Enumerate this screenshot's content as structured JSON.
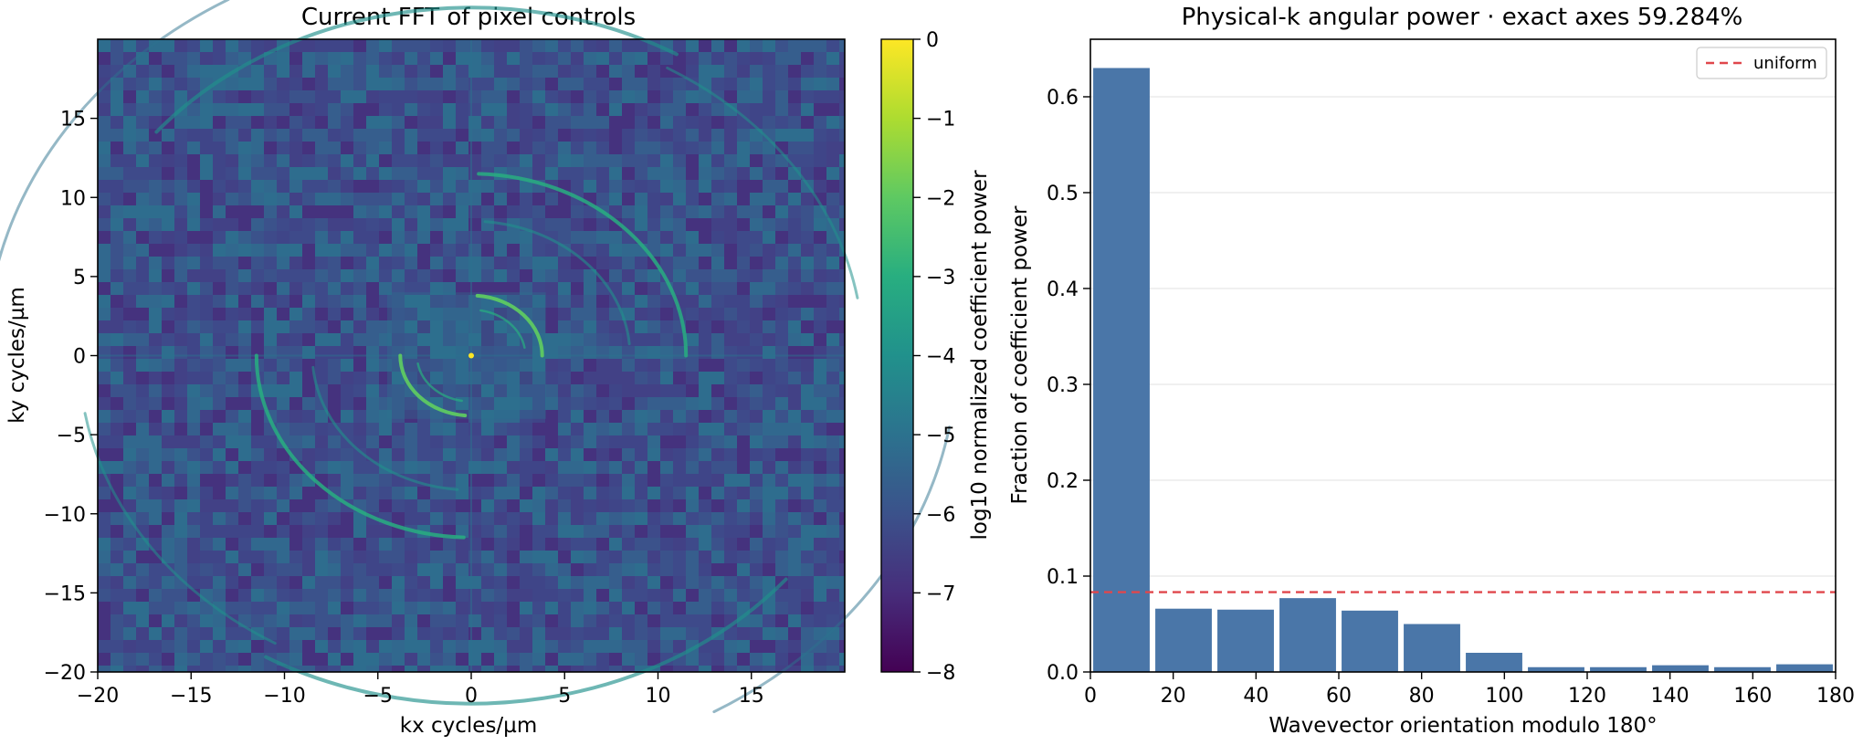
{
  "chart_data": [
    {
      "type": "heatmap",
      "title": "Current FFT of pixel controls",
      "xlabel": "kx cycles/µm",
      "ylabel": "ky cycles/µm",
      "xlim": [
        -20,
        20
      ],
      "ylim": [
        -20,
        20
      ],
      "xticks": [
        -20,
        -15,
        -10,
        -5,
        0,
        5,
        10,
        15
      ],
      "yticks": [
        -20,
        -15,
        -10,
        -5,
        0,
        5,
        10,
        15
      ],
      "xtick_labels": [
        "−20",
        "−15",
        "−10",
        "−5",
        "0",
        "5",
        "10",
        "15"
      ],
      "ytick_labels": [
        "−20",
        "−15",
        "−10",
        "−5",
        "0",
        "5",
        "10",
        "15"
      ],
      "colormap": "viridis",
      "colorbar": {
        "label": "log10 normalized coefficient power",
        "range": [
          -8,
          0
        ],
        "ticks": [
          0,
          -1,
          -2,
          -3,
          -4,
          -5,
          -6,
          -7,
          -8
        ],
        "tick_labels": [
          "0",
          "−1",
          "−2",
          "−3",
          "−4",
          "−5",
          "−6",
          "−7",
          "−8"
        ]
      },
      "grid": false
    },
    {
      "type": "bar",
      "title": "Physical-k angular power · exact axes 59.284%",
      "xlabel": "Wavevector orientation modulo 180°",
      "ylabel": "Fraction of coefficient power",
      "xlim": [
        0,
        180
      ],
      "ylim": [
        0,
        0.66
      ],
      "xticks": [
        0,
        20,
        40,
        60,
        80,
        100,
        120,
        140,
        160,
        180
      ],
      "yticks": [
        0.0,
        0.1,
        0.2,
        0.3,
        0.4,
        0.5,
        0.6
      ],
      "ytick_labels": [
        "0.0",
        "0.1",
        "0.2",
        "0.3",
        "0.4",
        "0.5",
        "0.6"
      ],
      "bin_edges": [
        0,
        15,
        30,
        45,
        60,
        75,
        90,
        105,
        120,
        135,
        150,
        165,
        180
      ],
      "values": [
        0.63,
        0.066,
        0.065,
        0.077,
        0.064,
        0.05,
        0.02,
        0.005,
        0.005,
        0.007,
        0.005,
        0.008
      ],
      "bar_color": "#4a76a8",
      "reference_line": {
        "label": "uniform",
        "value": 0.0833,
        "color": "#e0474c",
        "style": "dashed"
      },
      "legend_placement": "top-right",
      "grid": "horizontal"
    }
  ]
}
